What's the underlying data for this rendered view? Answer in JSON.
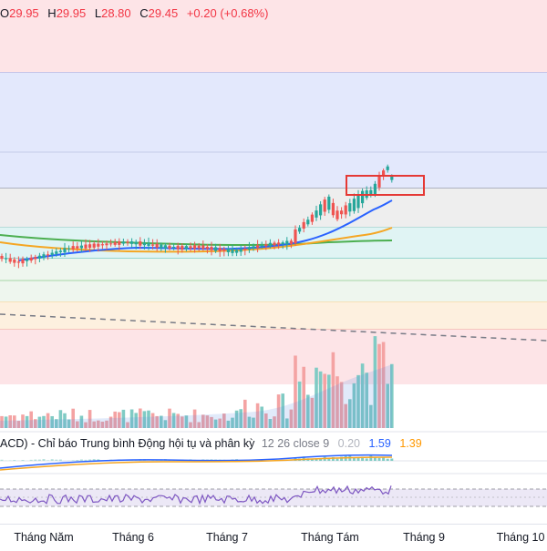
{
  "ohlc": {
    "open_label": "O",
    "open": "29.95",
    "high_label": "H",
    "high": "29.95",
    "low_label": "L",
    "low": "28.80",
    "close_label": "C",
    "close": "29.45",
    "change": "+0.20 (+0.68%)"
  },
  "macd": {
    "title": "ACD) - Chỉ báo Trung bình Động hội tụ và phân kỳ",
    "params": "12 26 close 9",
    "hist_value": "0.20",
    "macd_value": "1.59",
    "signal_value": "1.39"
  },
  "x_axis": {
    "labels": [
      "Tháng Năm",
      "Tháng 6",
      "Tháng 7",
      "Tháng Tám",
      "Tháng 9",
      "Tháng 10"
    ]
  },
  "colors": {
    "up": "#26a69a",
    "down": "#ef5350",
    "ema_fast": "#2962ff",
    "ema_mid": "#f5a623",
    "ema_slow": "#4caf50",
    "highlight": "#e53935"
  }
}
